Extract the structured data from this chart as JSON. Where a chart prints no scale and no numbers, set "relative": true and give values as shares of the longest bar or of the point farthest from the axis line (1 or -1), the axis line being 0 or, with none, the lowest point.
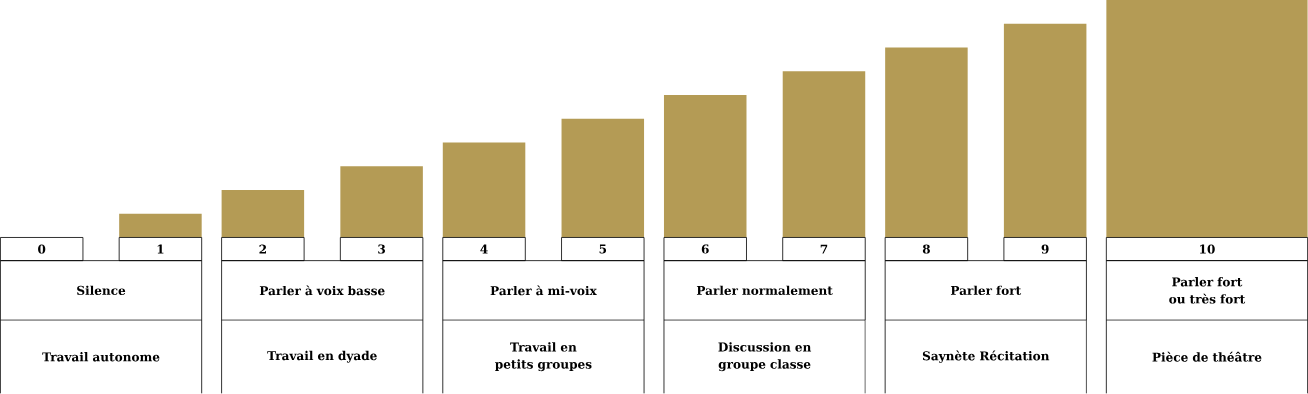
{
  "chart_data": {
    "type": "bar",
    "relative": true,
    "color": "#b49b55",
    "categories": [
      "0",
      "1",
      "2",
      "3",
      "4",
      "5",
      "6",
      "7",
      "8",
      "9",
      "10"
    ],
    "values": [
      0,
      0.1,
      0.2,
      0.3,
      0.4,
      0.5,
      0.6,
      0.7,
      0.8,
      0.9,
      1
    ],
    "annotations": [
      "Silence",
      "Parler à voix basse",
      "Parler à mi-voix",
      "Parler normalement",
      "Parler fort",
      "Parler fort ou très fort",
      "Travail autonome",
      "Travail en dyade",
      "Travail en petits groupes",
      "Discussion en groupe classe",
      "Saynète Récitation",
      "Pièce de théâtre"
    ]
  }
}
